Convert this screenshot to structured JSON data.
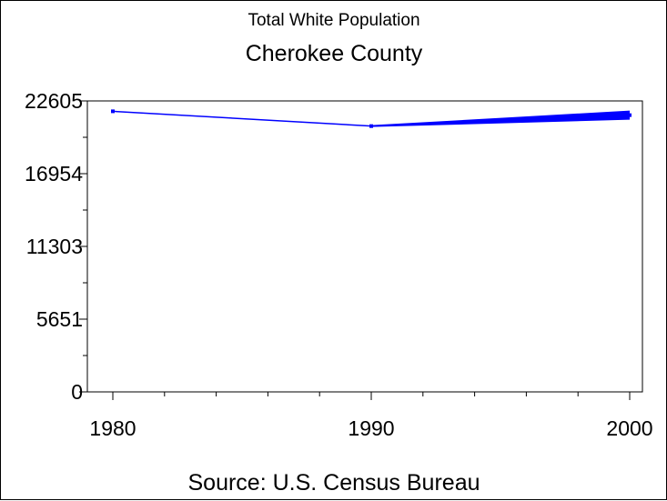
{
  "chart_data": {
    "type": "line",
    "title": "Total White Population",
    "subtitle": "Cherokee County",
    "footnote": "Source: U.S. Census Bureau",
    "xlabel": "",
    "ylabel": "",
    "x_ticks": [
      "1980",
      "1990",
      "2000"
    ],
    "y_ticks": [
      "0",
      "5651",
      "11303",
      "16954",
      "22605"
    ],
    "xlim": [
      1980,
      2000
    ],
    "ylim": [
      0,
      22605
    ],
    "grid": false,
    "color": "#0000ff",
    "series": [
      {
        "x": [
          1980,
          1990,
          2000
        ],
        "values": [
          21800,
          20650,
          21500
        ]
      }
    ]
  }
}
